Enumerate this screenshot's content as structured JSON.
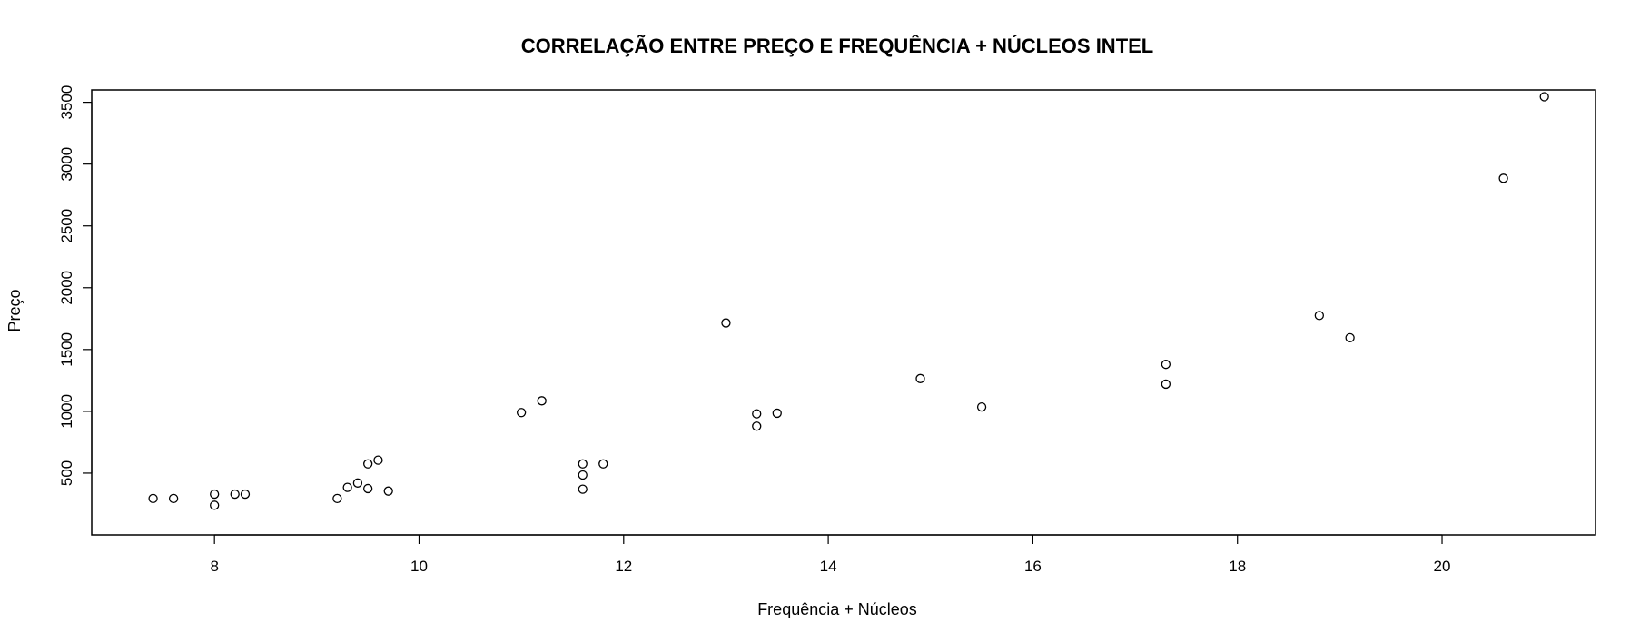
{
  "chart_data": {
    "type": "scatter",
    "title": "CORRELAÇÃO ENTRE PREÇO E FREQUÊNCIA + NÚCLEOS INTEL",
    "xlabel": "Frequência + Núcleos",
    "ylabel": "Preço",
    "xlim": [
      6.8,
      21.5
    ],
    "ylim": [
      0,
      3600
    ],
    "xticks": [
      8,
      10,
      12,
      14,
      16,
      18,
      20
    ],
    "yticks": [
      500,
      1000,
      1500,
      2000,
      2500,
      3000,
      3500
    ],
    "grid": false,
    "legend": false,
    "marker": "open-circle",
    "colors": {
      "marker": "#000000",
      "axis": "#000000",
      "background": "#ffffff"
    },
    "points": [
      {
        "x": 7.4,
        "y": 295
      },
      {
        "x": 7.6,
        "y": 295
      },
      {
        "x": 8.0,
        "y": 330
      },
      {
        "x": 8.0,
        "y": 240
      },
      {
        "x": 8.2,
        "y": 330
      },
      {
        "x": 8.3,
        "y": 330
      },
      {
        "x": 9.2,
        "y": 295
      },
      {
        "x": 9.3,
        "y": 385
      },
      {
        "x": 9.4,
        "y": 420
      },
      {
        "x": 9.5,
        "y": 575
      },
      {
        "x": 9.5,
        "y": 375
      },
      {
        "x": 9.6,
        "y": 605
      },
      {
        "x": 9.7,
        "y": 355
      },
      {
        "x": 11.0,
        "y": 990
      },
      {
        "x": 11.2,
        "y": 1085
      },
      {
        "x": 11.6,
        "y": 575
      },
      {
        "x": 11.6,
        "y": 485
      },
      {
        "x": 11.6,
        "y": 370
      },
      {
        "x": 11.8,
        "y": 575
      },
      {
        "x": 13.0,
        "y": 1715
      },
      {
        "x": 13.3,
        "y": 980
      },
      {
        "x": 13.3,
        "y": 880
      },
      {
        "x": 13.5,
        "y": 985
      },
      {
        "x": 14.9,
        "y": 1265
      },
      {
        "x": 15.5,
        "y": 1035
      },
      {
        "x": 17.3,
        "y": 1380
      },
      {
        "x": 17.3,
        "y": 1220
      },
      {
        "x": 18.8,
        "y": 1775
      },
      {
        "x": 19.1,
        "y": 1595
      },
      {
        "x": 20.6,
        "y": 2885
      },
      {
        "x": 21.0,
        "y": 3545
      }
    ]
  }
}
